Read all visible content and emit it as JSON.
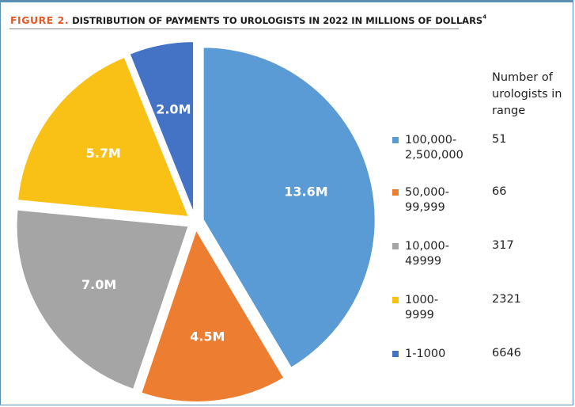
{
  "header": {
    "figure_label": "FIGURE 2.",
    "title": "DISTRIBUTION OF PAYMENTS TO UROLOGISTS IN 2022 IN MILLIONS OF DOLLARS",
    "superscript": "4"
  },
  "count_header": "Number of urologists in range",
  "chart_data": {
    "type": "pie",
    "title": "DISTRIBUTION OF PAYMENTS TO UROLOGISTS IN 2022 IN MILLIONS OF DOLLARS",
    "unit": "millions of dollars",
    "legend_position": "right",
    "slices": [
      {
        "name": "100,000-2,500,000",
        "legend_lines": [
          "100,000-",
          "2,500,000"
        ],
        "value": 13.6,
        "label": "13.6M",
        "count": "51",
        "color": "#5b9bd5"
      },
      {
        "name": "50,000-99,999",
        "legend_lines": [
          "50,000-",
          "99,999"
        ],
        "value": 4.5,
        "label": "4.5M",
        "count": "66",
        "color": "#ed7d31"
      },
      {
        "name": "10,000-49999",
        "legend_lines": [
          "10,000-",
          "49999"
        ],
        "value": 7.0,
        "label": "7.0M",
        "count": "317",
        "color": "#a5a5a5"
      },
      {
        "name": "1000-9999",
        "legend_lines": [
          "1000-",
          "9999"
        ],
        "value": 5.7,
        "label": "5.7M",
        "count": "2321",
        "color": "#f9c015"
      },
      {
        "name": "1-1000",
        "legend_lines": [
          "1-1000"
        ],
        "value": 2.0,
        "label": "2.0M",
        "count": "6646",
        "color": "#4472c4"
      }
    ]
  }
}
